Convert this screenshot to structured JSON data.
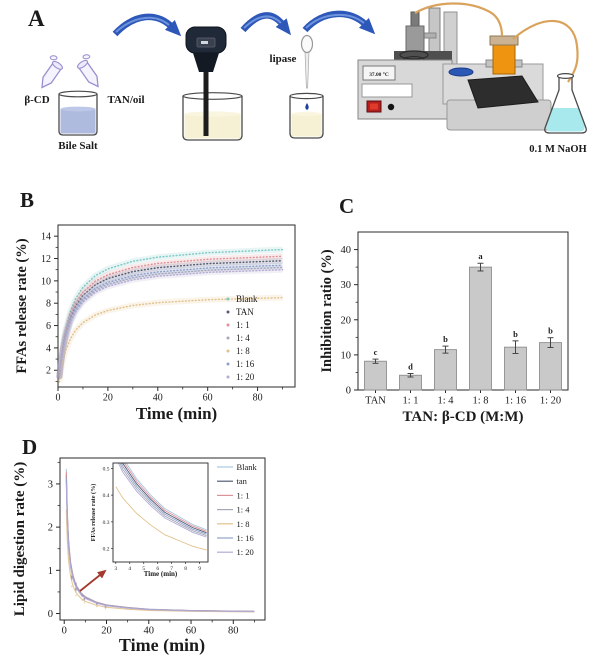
{
  "panel_a": {
    "label": "A",
    "beta_cd": "β-CD",
    "tan_oil": "TAN/oil",
    "bile_salt": "Bile Salt",
    "lipase": "lipase",
    "temp": "37.00 °C",
    "naoh": "0.1 M NaOH"
  },
  "chart_data": [
    {
      "id": "B",
      "panel_label": "B",
      "type": "line",
      "xlabel": "Time (min)",
      "ylabel": "FFAs release rate (%)",
      "xlim": [
        0,
        95
      ],
      "ylim": [
        0.5,
        15
      ],
      "xticks": [
        0,
        20,
        40,
        60,
        80
      ],
      "xminors": [
        10,
        30,
        50,
        70,
        90
      ],
      "yticks": [
        2,
        4,
        6,
        8,
        10,
        12,
        14
      ],
      "yminors": [
        1,
        3,
        5,
        7,
        9,
        11,
        13
      ],
      "legend_pos": "lower-right",
      "x": [
        0.5,
        1,
        2,
        3,
        5,
        7,
        10,
        15,
        20,
        30,
        40,
        60,
        90
      ],
      "series": [
        {
          "name": "Blank",
          "color": "#7ec9c5",
          "values": [
            1.43,
            2.58,
            4.32,
            5.58,
            7.28,
            8.37,
            9.43,
            10.47,
            11.07,
            11.75,
            12.12,
            12.52,
            12.8
          ]
        },
        {
          "name": "TAN",
          "color": "#565b74",
          "values": [
            1.31,
            2.38,
            3.98,
            5.15,
            6.71,
            7.72,
            8.7,
            9.65,
            10.21,
            10.83,
            11.18,
            11.54,
            11.8
          ]
        },
        {
          "name": "1: 1",
          "color": "#dd9298",
          "values": [
            1.36,
            2.46,
            4.12,
            5.32,
            6.94,
            7.98,
            8.99,
            9.98,
            10.55,
            11.2,
            11.56,
            11.93,
            12.2
          ]
        },
        {
          "name": "1: 4",
          "color": "#a3aab6",
          "values": [
            1.25,
            2.25,
            3.78,
            4.88,
            6.37,
            7.33,
            8.25,
            9.16,
            9.69,
            10.28,
            10.61,
            10.95,
            11.2
          ]
        },
        {
          "name": "1: 8",
          "color": "#e2c28c",
          "values": [
            0.95,
            1.71,
            2.87,
            3.71,
            4.83,
            5.56,
            6.26,
            6.95,
            7.35,
            7.8,
            8.05,
            8.31,
            8.5
          ]
        },
        {
          "name": "1: 16",
          "color": "#8fa1cb",
          "values": [
            1.27,
            2.29,
            3.85,
            4.97,
            6.48,
            7.46,
            8.4,
            9.32,
            9.86,
            10.47,
            10.8,
            11.15,
            11.4
          ]
        },
        {
          "name": "1: 20",
          "color": "#b5abd5",
          "values": [
            1.23,
            2.21,
            3.71,
            4.8,
            6.26,
            7.2,
            8.11,
            8.99,
            9.51,
            10.1,
            10.42,
            10.76,
            11.0
          ]
        }
      ]
    },
    {
      "id": "C",
      "panel_label": "C",
      "type": "bar",
      "xlabel": "TAN: β-CD (M:M)",
      "ylabel": "Inhibition ratio (%)",
      "ylim": [
        0,
        45
      ],
      "yticks": [
        0,
        10,
        20,
        30,
        40
      ],
      "yminors": [
        5,
        15,
        25,
        35
      ],
      "categories": [
        "TAN",
        "1: 1",
        "1: 4",
        "1: 8",
        "1: 16",
        "1: 20"
      ],
      "values": [
        8.2,
        4.2,
        11.5,
        35.0,
        12.2,
        13.5
      ],
      "errors": [
        0.6,
        0.5,
        1.0,
        1.1,
        1.8,
        1.4
      ],
      "letters": [
        "c",
        "d",
        "b",
        "a",
        "b",
        "b"
      ],
      "bar_color": "#c9c9c9",
      "bar_edge": "#8f8f8f"
    },
    {
      "id": "D",
      "panel_label": "D",
      "type": "line",
      "xlabel": "Time (min)",
      "ylabel": "Lipid digestion rate (%)",
      "xlim": [
        -2,
        95
      ],
      "ylim": [
        -0.15,
        3.6
      ],
      "xticks": [
        0,
        20,
        40,
        60,
        80
      ],
      "xminors": [
        10,
        30,
        50,
        70,
        90
      ],
      "yticks": [
        0,
        1,
        2,
        3
      ],
      "yminors": [
        0.5,
        1.5,
        2.5,
        3.5
      ],
      "x": [
        1,
        1.2,
        1.5,
        2,
        2.5,
        3,
        4,
        5,
        6,
        8,
        10,
        15,
        20,
        30,
        40,
        60,
        90
      ],
      "base": [
        3.35,
        2.85,
        2.3,
        1.75,
        1.45,
        1.2,
        0.92,
        0.75,
        0.63,
        0.48,
        0.39,
        0.27,
        0.2,
        0.14,
        0.1,
        0.07,
        0.05
      ],
      "series": [
        {
          "name": "Blank",
          "color": "#a9c6df",
          "k": 1.0
        },
        {
          "name": "tan",
          "color": "#565b74",
          "k": 0.96
        },
        {
          "name": "1: 1",
          "color": "#dd9298",
          "k": 0.98
        },
        {
          "name": "1: 4",
          "color": "#a3aab6",
          "k": 0.92
        },
        {
          "name": "1: 8",
          "color": "#e2c28c",
          "k": 0.72
        },
        {
          "name": "1: 16",
          "color": "#8fa1cb",
          "k": 0.94
        },
        {
          "name": "1: 20",
          "color": "#b5abd5",
          "k": 0.9
        }
      ],
      "inset": {
        "xlabel": "Time (min)",
        "ylabel": "FFAs release rate (%)",
        "xlim": [
          2.8,
          9.6
        ],
        "ylim": [
          0.15,
          0.52
        ],
        "xticks": [
          3,
          4,
          5,
          6,
          7,
          8,
          9
        ],
        "yticks": [
          0.2,
          0.3,
          0.4,
          0.5
        ],
        "x": [
          3,
          3.5,
          4,
          4.5,
          5,
          5.5,
          6,
          6.5,
          7,
          7.5,
          8,
          8.5,
          9,
          9.5
        ],
        "base": [
          0.6,
          0.54,
          0.5,
          0.46,
          0.43,
          0.4,
          0.375,
          0.35,
          0.335,
          0.32,
          0.305,
          0.29,
          0.28,
          0.27
        ]
      }
    }
  ]
}
